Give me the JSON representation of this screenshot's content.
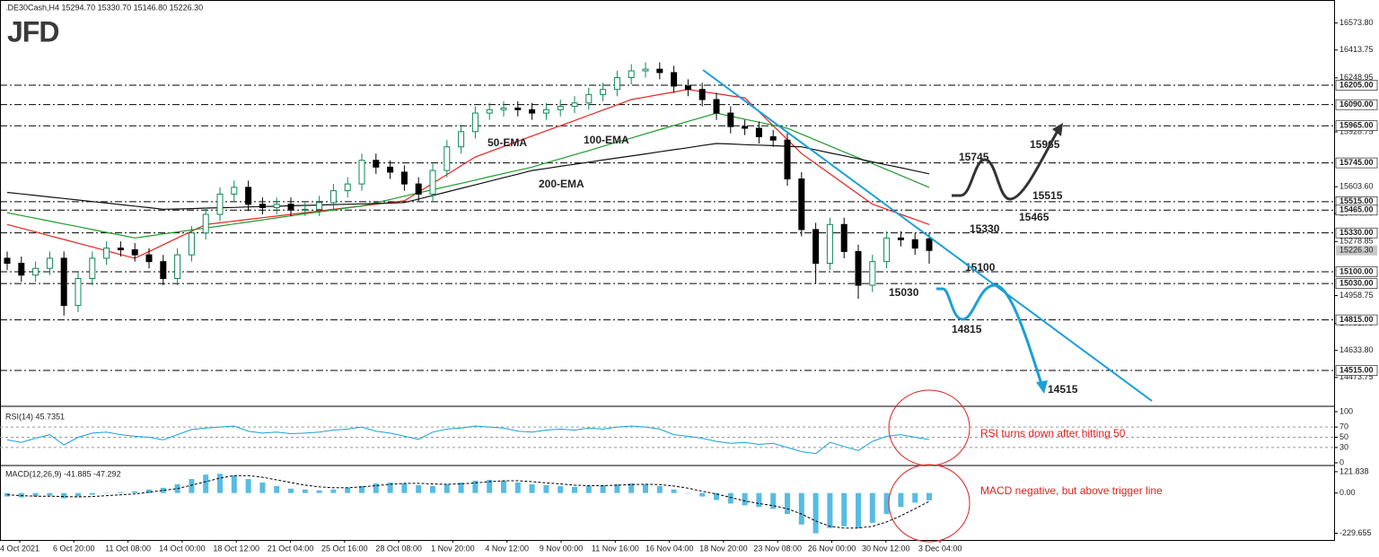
{
  "chart_data": {
    "type": "candlestick",
    "header": ".DE30Cash,H4  15294.70 15330.70 15146.80 15226.30",
    "logo": "JFD",
    "candles": {
      "up_color": "#0a8a55",
      "down_color": "#000000",
      "open": [
        15180,
        15150,
        15080,
        15120,
        15180,
        14900,
        15060,
        15180,
        15240,
        15230,
        15200,
        15160,
        15060,
        15200,
        15330,
        15440,
        15560,
        15600,
        15500,
        15480,
        15500,
        15470,
        15470,
        15510,
        15580,
        15620,
        15760,
        15720,
        15690,
        15620,
        15560,
        15700,
        15840,
        15930,
        16040,
        16060,
        16070,
        16060,
        16040,
        16060,
        16080,
        16100,
        16150,
        16180,
        16250,
        16290,
        16300,
        16280,
        16200,
        16180,
        16120,
        16040,
        15960,
        15950,
        15900,
        15880,
        15650,
        15350,
        15150,
        15380,
        15220,
        15020,
        15160,
        15300,
        15290,
        15294.7
      ],
      "high": [
        15220,
        15190,
        15160,
        15220,
        15220,
        15100,
        15220,
        15280,
        15280,
        15270,
        15240,
        15200,
        15240,
        15370,
        15480,
        15600,
        15640,
        15640,
        15540,
        15540,
        15540,
        15510,
        15550,
        15620,
        15660,
        15800,
        15800,
        15760,
        15730,
        15660,
        15740,
        15880,
        15970,
        16080,
        16100,
        16110,
        16110,
        16100,
        16100,
        16120,
        16140,
        16190,
        16220,
        16290,
        16330,
        16340,
        16340,
        16320,
        16240,
        16220,
        16160,
        16080,
        16000,
        15990,
        15940,
        15920,
        15690,
        15390,
        15420,
        15420,
        15260,
        15200,
        15340,
        15340,
        15330,
        15330.7
      ],
      "low": [
        15110,
        15040,
        15040,
        15080,
        14840,
        14860,
        15020,
        15140,
        15190,
        15160,
        15120,
        15020,
        15020,
        15160,
        15290,
        15400,
        15520,
        15460,
        15440,
        15440,
        15430,
        15430,
        15430,
        15470,
        15540,
        15580,
        15680,
        15650,
        15580,
        15520,
        15520,
        15660,
        15800,
        15890,
        16000,
        16020,
        16020,
        16000,
        16000,
        16020,
        16040,
        16060,
        16110,
        16140,
        16210,
        16250,
        16240,
        16160,
        16140,
        16080,
        16000,
        15920,
        15910,
        15860,
        15840,
        15610,
        15310,
        15030,
        15110,
        15180,
        14940,
        14980,
        15120,
        15250,
        15200,
        15146.8
      ],
      "close": [
        15150,
        15080,
        15120,
        15180,
        14900,
        15060,
        15180,
        15240,
        15230,
        15200,
        15160,
        15060,
        15200,
        15330,
        15440,
        15560,
        15600,
        15500,
        15480,
        15500,
        15470,
        15470,
        15510,
        15580,
        15620,
        15760,
        15720,
        15690,
        15620,
        15560,
        15700,
        15840,
        15930,
        16040,
        16060,
        16070,
        16060,
        16040,
        16060,
        16080,
        16100,
        16150,
        16180,
        16250,
        16290,
        16300,
        16280,
        16200,
        16180,
        16120,
        16040,
        15960,
        15950,
        15900,
        15880,
        15650,
        15350,
        15150,
        15380,
        15220,
        15020,
        15160,
        15300,
        15290,
        15240,
        15226.3
      ]
    },
    "series": [
      {
        "name": "50-EMA",
        "color": "#e8221f",
        "values": [
          15380,
          15358,
          15336,
          15313,
          15291,
          15269,
          15247,
          15224,
          15202,
          15180,
          15220,
          15260,
          15300,
          15340,
          15380,
          15390,
          15400,
          15410,
          15420,
          15430,
          15440,
          15450,
          15460,
          15470,
          15480,
          15490,
          15500,
          15510,
          15520,
          15572,
          15624,
          15676,
          15728,
          15780,
          15811,
          15842,
          15873,
          15904,
          15935,
          15965,
          15996,
          16027,
          16058,
          16089,
          16120,
          16135,
          16150,
          16165,
          16180,
          16167,
          16155,
          16142,
          16130,
          16048,
          15965,
          15883,
          15800,
          15740,
          15680,
          15620,
          15560,
          15500,
          15470,
          15440,
          15410,
          15380
        ]
      },
      {
        "name": "100-EMA",
        "color": "#1e9a2e",
        "values": [
          15450,
          15433,
          15417,
          15400,
          15383,
          15367,
          15350,
          15333,
          15317,
          15300,
          15312,
          15324,
          15336,
          15348,
          15359,
          15371,
          15383,
          15395,
          15407,
          15419,
          15431,
          15443,
          15454,
          15466,
          15478,
          15490,
          15509,
          15528,
          15548,
          15567,
          15586,
          15605,
          15624,
          15643,
          15663,
          15682,
          15701,
          15720,
          15745,
          15769,
          15794,
          15818,
          15843,
          15868,
          15892,
          15917,
          15942,
          15966,
          15991,
          16015,
          16040,
          16022,
          16004,
          15986,
          15968,
          15950,
          15915,
          15880,
          15845,
          15810,
          15775,
          15740,
          15705,
          15670,
          15635,
          15600
        ]
      },
      {
        "name": "200-EMA",
        "color": "#111111",
        "values": [
          15570,
          15561,
          15552,
          15543,
          15534,
          15525,
          15516,
          15507,
          15498,
          15489,
          15480,
          15470,
          15472,
          15474,
          15477,
          15479,
          15481,
          15484,
          15486,
          15488,
          15491,
          15493,
          15495,
          15498,
          15500,
          15502,
          15505,
          15507,
          15510,
          15531,
          15552,
          15573,
          15594,
          15615,
          15636,
          15657,
          15678,
          15700,
          15712,
          15725,
          15737,
          15749,
          15762,
          15774,
          15786,
          15798,
          15811,
          15823,
          15835,
          15848,
          15860,
          15857,
          15853,
          15850,
          15847,
          15843,
          15840,
          15822,
          15804,
          15787,
          15769,
          15751,
          15733,
          15716,
          15698,
          15680
        ]
      }
    ],
    "ylim": [
      14308,
      16710
    ],
    "yticks": [
      {
        "value": 16573.8,
        "label": "16573.80"
      },
      16413.75,
      16248.95,
      15928.75,
      {
        "value": 15603.6,
        "label": "15603.60"
      },
      {
        "value": 15444.7,
        "label": "15444.70"
      },
      15278.85,
      14958.75,
      {
        "value": 14793.7,
        "label": "14793.70"
      },
      {
        "value": 14633.8,
        "label": "14633.80"
      },
      14473.75
    ],
    "levels": [
      {
        "value": 16205,
        "label": "16205.00"
      },
      {
        "value": 16090,
        "label": "16090.00"
      },
      {
        "value": 15965,
        "label": "15965.00"
      },
      {
        "value": 15745,
        "label": "15745.00"
      },
      {
        "value": 15515,
        "label": "15515.00"
      },
      {
        "value": 15465,
        "label": "15465.00"
      },
      {
        "value": 15330,
        "label": "15330.00"
      },
      {
        "value": 15100,
        "label": "15100.00"
      },
      {
        "value": 15030,
        "label": "15030.00"
      },
      {
        "value": 14815,
        "label": "14815.00"
      },
      {
        "value": 14515,
        "label": "14515.00"
      }
    ],
    "current_price": {
      "value": 15226.3,
      "label": "15226.30"
    },
    "annotations": [
      {
        "text": "15965",
        "color": "#333333"
      },
      {
        "text": "15745",
        "color": "#333333"
      },
      {
        "text": "15515",
        "color": "#333333"
      },
      {
        "text": "15465",
        "color": "#333333"
      },
      {
        "text": "15330",
        "color": "#333333"
      },
      {
        "text": "15100",
        "color": "#1aa0d8"
      },
      {
        "text": "15030",
        "color": "#1aa0d8"
      },
      {
        "text": "14815",
        "color": "#1aa0d8"
      },
      {
        "text": "14515",
        "color": "#1aa0d8"
      }
    ],
    "xlabels": [
      "4 Oct 2021",
      "6 Oct 20:00",
      "11 Oct 08:00",
      "14 Oct 00:00",
      "18 Oct 12:00",
      "21 Oct 04:00",
      "25 Oct 16:00",
      "28 Oct 08:00",
      "1 Nov 20:00",
      "4 Nov 12:00",
      "9 Nov 00:00",
      "11 Nov 16:00",
      "16 Nov 04:00",
      "18 Nov 20:00",
      "23 Nov 08:00",
      "26 Nov 00:00",
      "30 Nov 12:00",
      "3 Dec 04:00"
    ],
    "rsi": {
      "label": "RSI(14) 45.7351",
      "color": "#1aa0d8",
      "note": "RSI turns down after hitting 50",
      "ylim": [
        0,
        100
      ],
      "yticks": [
        0,
        30,
        50,
        70,
        100
      ],
      "values": [
        45,
        40,
        48,
        55,
        35,
        50,
        58,
        60,
        55,
        52,
        50,
        45,
        55,
        65,
        68,
        70,
        72,
        62,
        58,
        60,
        57,
        58,
        60,
        64,
        66,
        70,
        62,
        58,
        52,
        46,
        60,
        66,
        68,
        72,
        70,
        68,
        62,
        60,
        64,
        66,
        64,
        68,
        66,
        70,
        72,
        70,
        66,
        55,
        52,
        48,
        42,
        38,
        40,
        36,
        38,
        30,
        22,
        18,
        40,
        32,
        24,
        42,
        52,
        55,
        50,
        45.7
      ]
    },
    "macd": {
      "label": "MACD(12,26,9) -41.885 -47.292",
      "color": "#3ab0dd",
      "note": "MACD negative, but above trigger line",
      "ylim": [
        -268,
        152
      ],
      "yticks": [
        121.838,
        {
          "value": 0,
          "label": "0.00"
        },
        -229.655
      ],
      "histogram": [
        -20,
        -25,
        -20,
        -15,
        -30,
        -20,
        -10,
        0,
        5,
        10,
        20,
        30,
        50,
        80,
        105,
        110,
        100,
        80,
        60,
        40,
        25,
        20,
        15,
        20,
        30,
        40,
        55,
        60,
        55,
        45,
        40,
        50,
        60,
        70,
        75,
        70,
        60,
        50,
        45,
        40,
        35,
        40,
        45,
        50,
        55,
        50,
        40,
        20,
        0,
        -20,
        -40,
        -60,
        -70,
        -80,
        -90,
        -120,
        -180,
        -230,
        -200,
        -190,
        -200,
        -170,
        -120,
        -80,
        -55,
        -41.885
      ],
      "signal": [
        -10,
        -15,
        -18,
        -18,
        -20,
        -22,
        -20,
        -15,
        -10,
        -5,
        5,
        15,
        25,
        45,
        65,
        85,
        100,
        100,
        90,
        75,
        60,
        45,
        35,
        30,
        30,
        35,
        42,
        50,
        55,
        55,
        52,
        50,
        52,
        58,
        65,
        70,
        70,
        65,
        58,
        52,
        45,
        42,
        42,
        45,
        48,
        50,
        48,
        40,
        28,
        10,
        -5,
        -25,
        -45,
        -60,
        -72,
        -90,
        -120,
        -160,
        -190,
        -200,
        -200,
        -190,
        -165,
        -130,
        -90,
        -47.292
      ]
    }
  }
}
